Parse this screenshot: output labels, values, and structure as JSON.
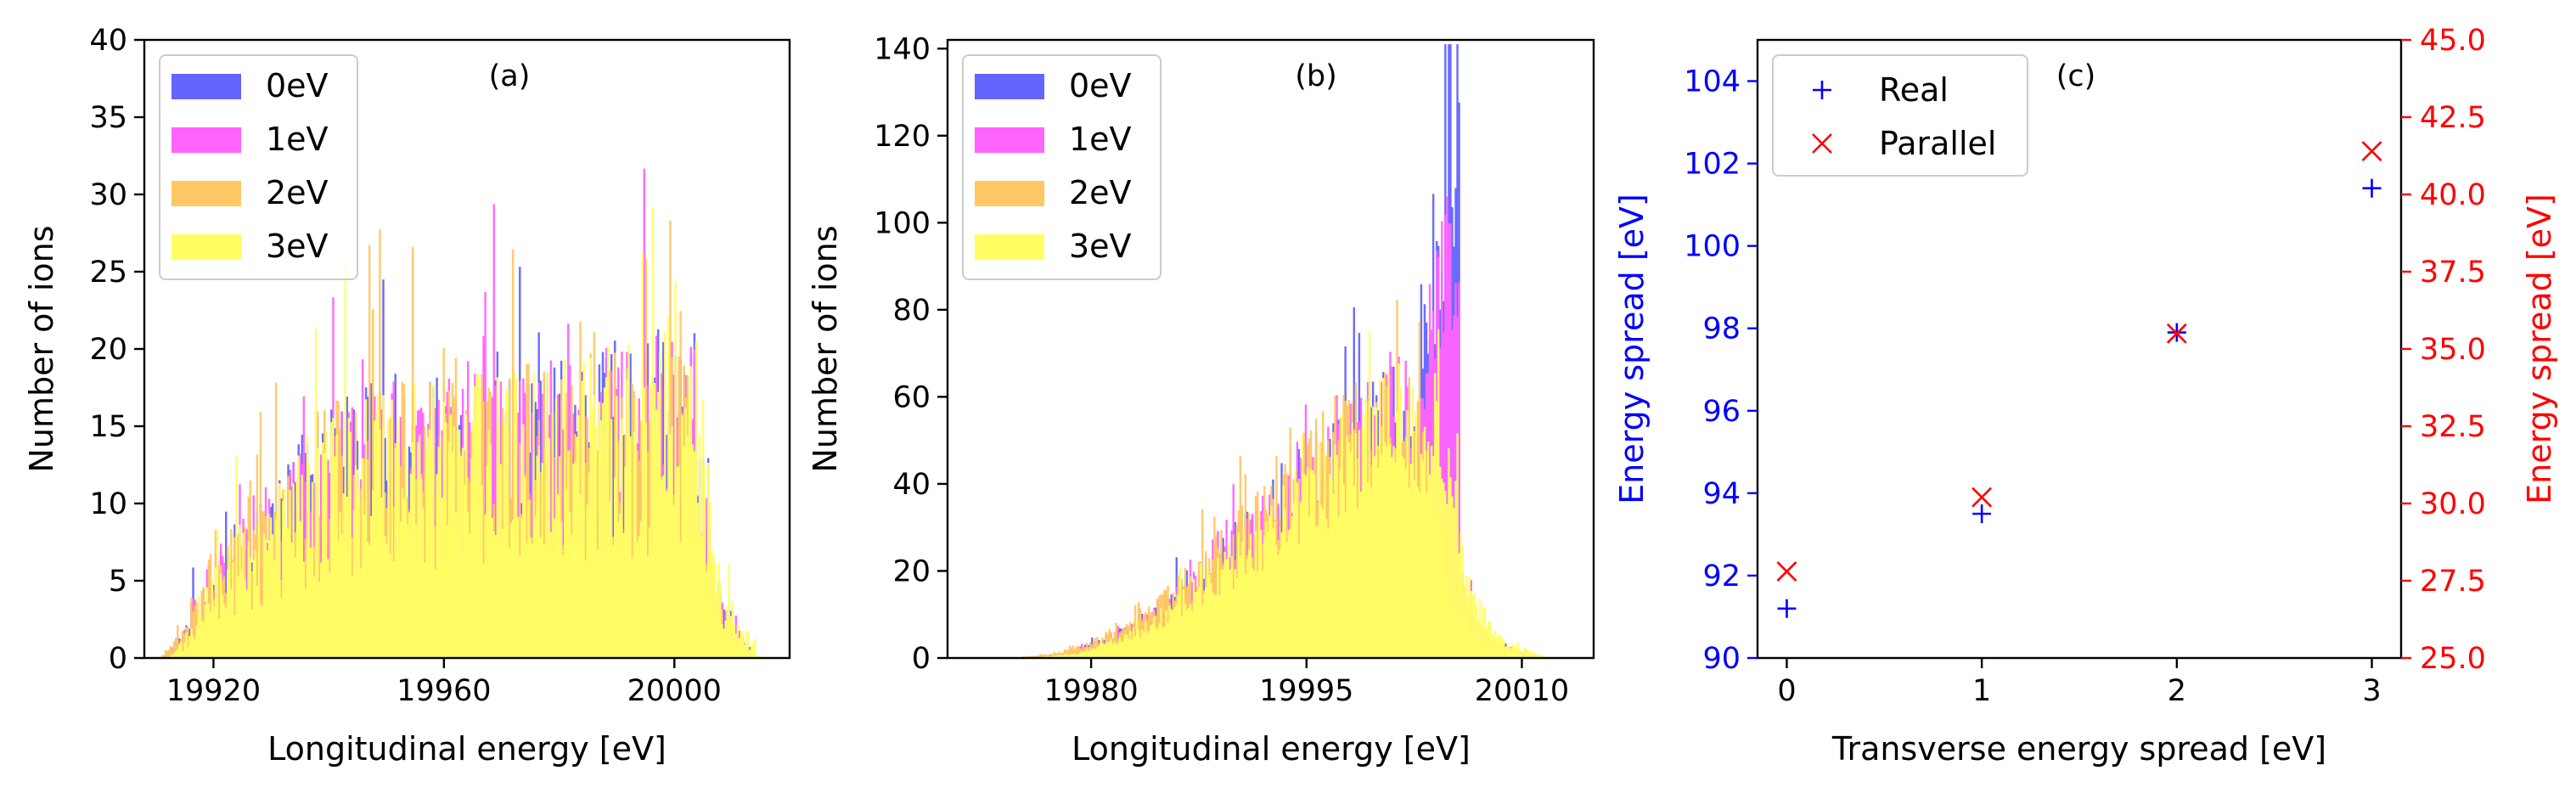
{
  "chart_data": [
    {
      "type": "bar",
      "panel_label": "(a)",
      "xlabel": "Longitudinal energy [eV]",
      "ylabel": "Number of ions",
      "xlim": [
        19908,
        20020
      ],
      "ylim": [
        0,
        40
      ],
      "xticks": [
        19920,
        19960,
        20000
      ],
      "yticks": [
        0,
        5,
        10,
        15,
        20,
        25,
        30,
        35,
        40
      ],
      "legend_position": "upper-left",
      "series": [
        {
          "name": "0eV",
          "color": "#6464ff"
        },
        {
          "name": "1eV",
          "color": "#ff64ff"
        },
        {
          "name": "2eV",
          "color": "#ffc864"
        },
        {
          "name": "3eV",
          "color": "#ffff64"
        }
      ],
      "profile": {
        "x": [
          19911,
          19914,
          19917,
          19920,
          19924,
          19929,
          19933,
          19938,
          19945,
          19960,
          19975,
          19990,
          19998,
          20003,
          20005,
          20006,
          20008,
          20012,
          20014
        ],
        "y": [
          0,
          1,
          3,
          5,
          6,
          7,
          9,
          11,
          12,
          12.5,
          13,
          14,
          15,
          14,
          9,
          5,
          3,
          1,
          0
        ]
      }
    },
    {
      "type": "bar",
      "panel_label": "(b)",
      "xlabel": "Longitudinal energy [eV]",
      "ylabel": "Number of ions",
      "xlim": [
        19970,
        20015
      ],
      "ylim": [
        0,
        142
      ],
      "xticks": [
        19980,
        19995,
        20010
      ],
      "yticks": [
        0,
        20,
        40,
        60,
        80,
        100,
        120,
        140
      ],
      "legend_position": "upper-left",
      "series": [
        {
          "name": "0eV",
          "color": "#6464ff"
        },
        {
          "name": "1eV",
          "color": "#ff64ff"
        },
        {
          "name": "2eV",
          "color": "#ffc864"
        },
        {
          "name": "3eV",
          "color": "#ffff64"
        }
      ],
      "profile": {
        "x": [
          19975,
          19978,
          19980,
          19983,
          19986,
          19989,
          19992,
          19995,
          19998,
          20001,
          20003,
          20004,
          20005,
          20006,
          20007,
          20008,
          20010,
          20011
        ],
        "y": [
          0,
          1,
          3,
          7,
          14,
          22,
          31,
          40,
          50,
          56,
          52,
          40,
          22,
          12,
          6,
          3,
          1,
          0
        ]
      },
      "spike": {
        "x_start": 20003.0,
        "x_end": 20005.6,
        "peak_x": 20005.0,
        "peak_y": 134
      }
    },
    {
      "type": "scatter",
      "panel_label": "(c)",
      "xlabel": "Transverse energy spread [eV]",
      "ylabel_left": "Energy spread [eV]",
      "ylabel_right": "Energy spread [eV]",
      "xlim": [
        -0.15,
        3.15
      ],
      "ylim_left": [
        90,
        105
      ],
      "ylim_right": [
        25,
        45
      ],
      "xticks": [
        0,
        1,
        2,
        3
      ],
      "yticks_left": [
        90,
        92,
        94,
        96,
        98,
        100,
        102,
        104
      ],
      "yticks_right": [
        "25.0",
        "27.5",
        "30.0",
        "32.5",
        "35.0",
        "37.5",
        "40.0",
        "42.5",
        "45.0"
      ],
      "legend_position": "upper-left",
      "series": [
        {
          "name": "Real",
          "marker": "+",
          "color": "#0000ff",
          "axis": "left",
          "x": [
            0,
            1,
            2,
            3
          ],
          "y": [
            91.2,
            93.5,
            97.9,
            101.4
          ]
        },
        {
          "name": "Parallel",
          "marker": "x",
          "color": "#ff0000",
          "axis": "right",
          "x": [
            0,
            1,
            2,
            3
          ],
          "y": [
            27.8,
            30.2,
            35.5,
            41.4
          ]
        }
      ]
    }
  ]
}
